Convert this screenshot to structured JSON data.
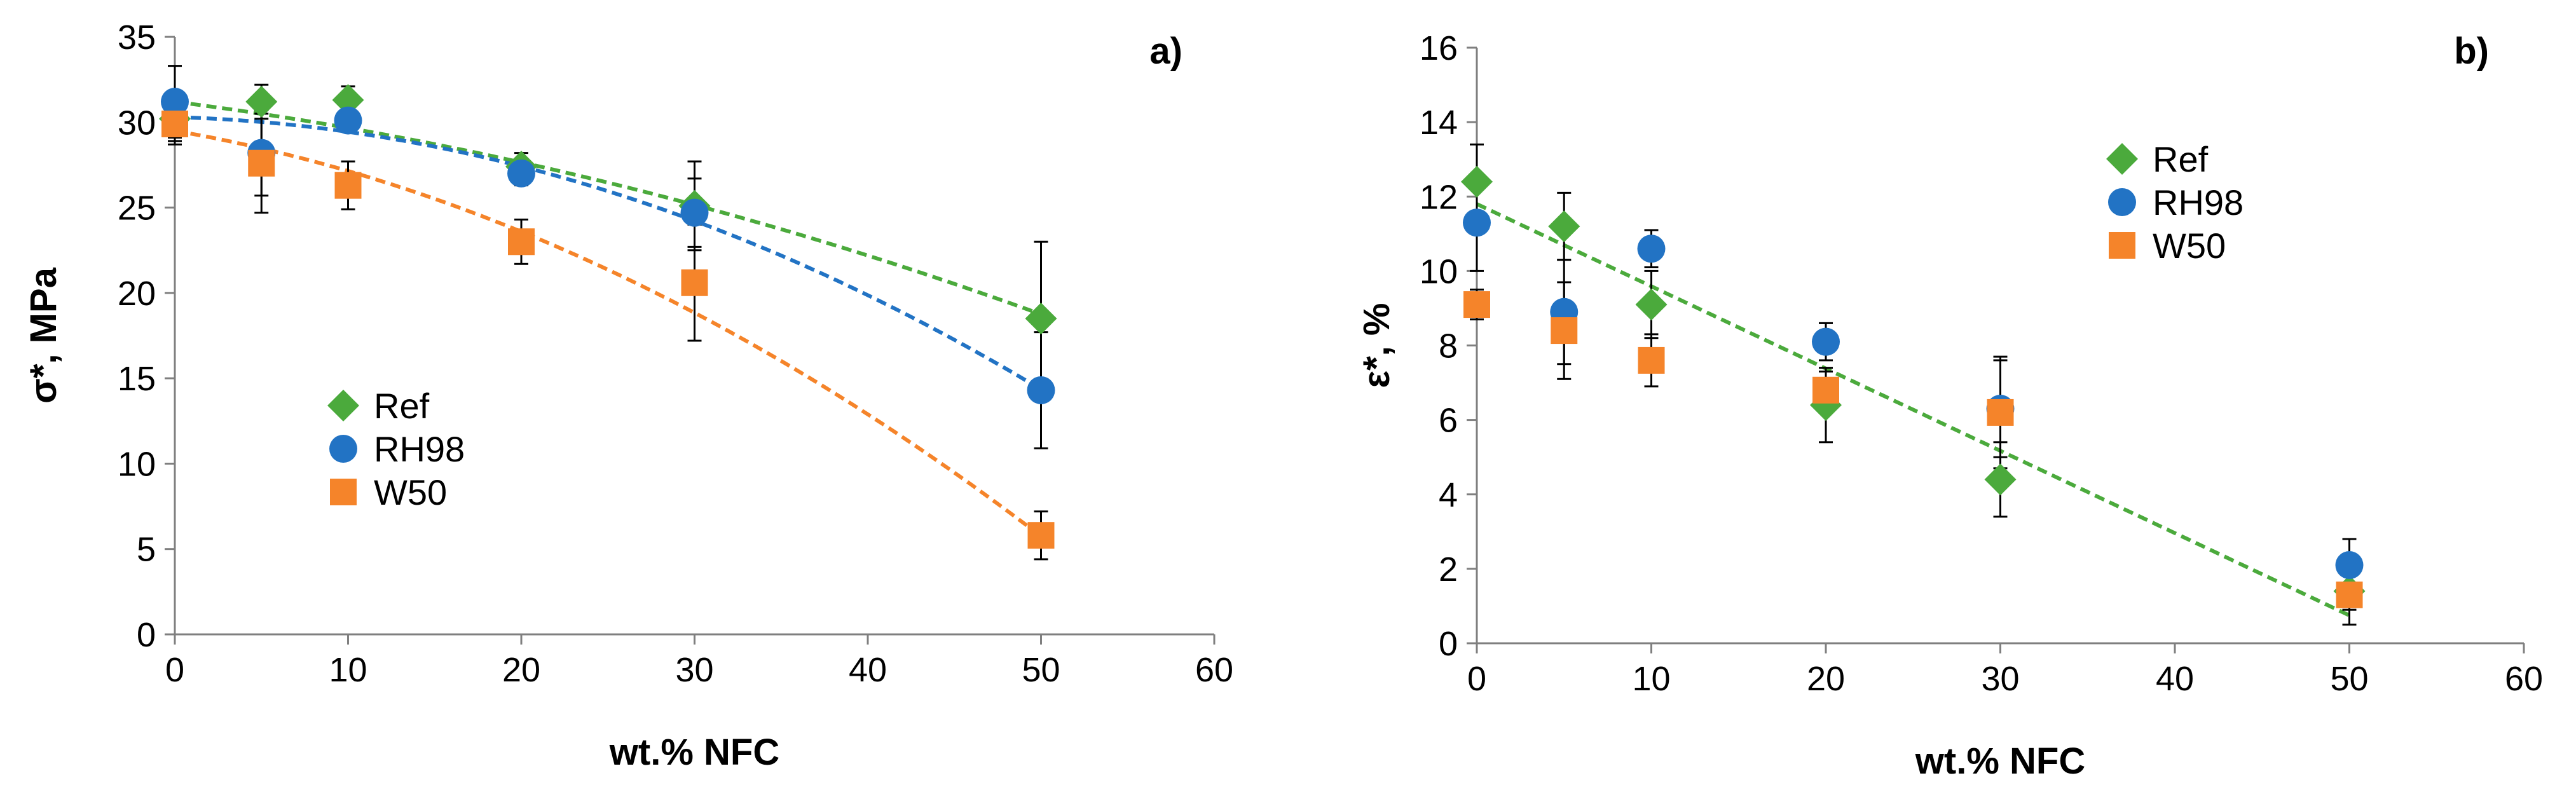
{
  "chart_data": [
    {
      "panel": "a)",
      "type": "scatter",
      "xlabel": "wt.% NFC",
      "ylabel": "σ*, MPa",
      "xlim": [
        0,
        60
      ],
      "ylim": [
        0,
        35
      ],
      "xticks": [
        0,
        10,
        20,
        30,
        40,
        50,
        60
      ],
      "yticks": [
        0,
        5,
        10,
        15,
        20,
        25,
        30,
        35
      ],
      "legend_position": "middle-left",
      "series": [
        {
          "name": "Ref",
          "marker": "diamond",
          "color": "#4BAA3C",
          "x": [
            0,
            5,
            10,
            20,
            30,
            50
          ],
          "y": [
            30.2,
            31.2,
            31.3,
            27.4,
            25.1,
            18.5
          ],
          "err": [
            1.3,
            1.0,
            0.8,
            0.8,
            2.6,
            4.5
          ],
          "trend": {
            "type": "poly2",
            "coeffs": [
              -0.00238,
              -0.13,
              31.2
            ]
          }
        },
        {
          "name": "RH98",
          "marker": "circle",
          "color": "#2273C4",
          "x": [
            0,
            5,
            10,
            20,
            30,
            50
          ],
          "y": [
            31.2,
            28.2,
            30.1,
            27.0,
            24.7,
            14.3
          ],
          "err": [
            2.1,
            2.5,
            0.6,
            0.7,
            2.0,
            3.4
          ],
          "trend": {
            "type": "poly2",
            "coeffs": [
              -0.00582,
              -0.028,
              30.3
            ]
          }
        },
        {
          "name": "W50",
          "marker": "square",
          "color": "#F5842A",
          "x": [
            0,
            5,
            10,
            20,
            30,
            50
          ],
          "y": [
            29.9,
            27.6,
            26.3,
            23.0,
            20.6,
            5.8
          ],
          "err": [
            1.2,
            2.9,
            1.4,
            1.3,
            3.4,
            1.4
          ],
          "trend": {
            "type": "poly2",
            "coeffs": [
              -0.00598,
              -0.176,
              29.5
            ]
          }
        }
      ]
    },
    {
      "panel": "b)",
      "type": "scatter",
      "xlabel": "wt.% NFC",
      "ylabel": "ε*, %",
      "xlim": [
        0,
        60
      ],
      "ylim": [
        0,
        16
      ],
      "xticks": [
        0,
        10,
        20,
        30,
        40,
        50,
        60
      ],
      "yticks": [
        0,
        2,
        4,
        6,
        8,
        10,
        12,
        14,
        16
      ],
      "legend_position": "top-center",
      "series": [
        {
          "name": "Ref",
          "marker": "diamond",
          "color": "#4BAA3C",
          "x": [
            0,
            5,
            10,
            20,
            30,
            50
          ],
          "y": [
            12.4,
            11.2,
            9.1,
            6.4,
            4.4,
            1.4
          ],
          "err": [
            1.0,
            0.9,
            0.9,
            1.0,
            1.0,
            0.5
          ],
          "trend": {
            "type": "linear",
            "coeffs": [
              -0.221,
              11.8
            ]
          }
        },
        {
          "name": "RH98",
          "marker": "circle",
          "color": "#2273C4",
          "x": [
            0,
            5,
            10,
            20,
            30,
            50
          ],
          "y": [
            11.3,
            8.9,
            10.6,
            8.1,
            6.3,
            2.1
          ],
          "err": [
            1.3,
            1.4,
            0.5,
            0.5,
            1.3,
            0.7
          ]
        },
        {
          "name": "W50",
          "marker": "square",
          "color": "#F5842A",
          "x": [
            0,
            5,
            10,
            20,
            30,
            50
          ],
          "y": [
            9.1,
            8.4,
            7.6,
            6.8,
            6.2,
            1.3
          ],
          "err": [
            0.4,
            1.3,
            0.7,
            0.5,
            1.5,
            0.8
          ]
        }
      ]
    }
  ]
}
